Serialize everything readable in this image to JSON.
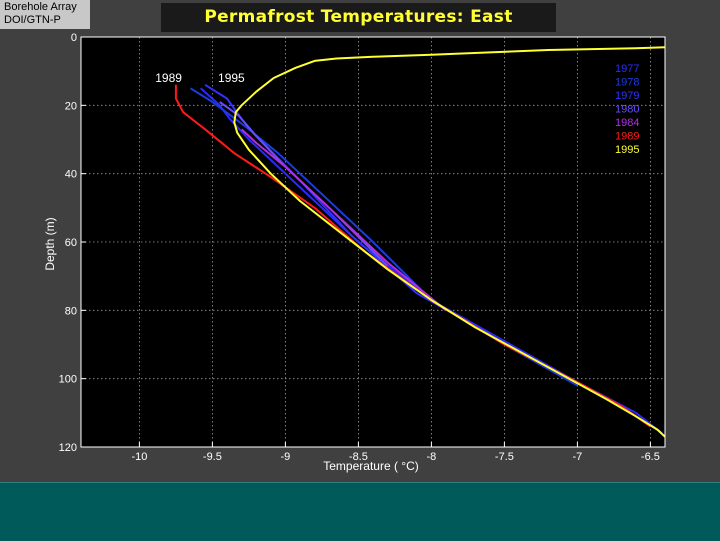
{
  "badge": {
    "line1": "Borehole Array",
    "line2": "DOI/GTN-P"
  },
  "colors": {
    "1977": "#2a2aff",
    "1978": "#1c3ce0",
    "1979": "#3030ff",
    "1980": "#6a4cff",
    "1984": "#b030e0",
    "1989": "#ff1a1a",
    "1995": "#ffff33"
  },
  "chart_data": {
    "type": "line",
    "title": "Permafrost Temperatures:  East Teshekpuk",
    "xlabel": "Temperature ( °C)",
    "ylabel": "Depth (m)",
    "xlim": [
      -10.4,
      -6.4
    ],
    "ylim": [
      0,
      120
    ],
    "y_inverted": true,
    "grid": true,
    "legend_position": "top-right",
    "xticks": [
      -10,
      -9.5,
      -9,
      -8.5,
      -8,
      -7.5,
      -7,
      -6.5
    ],
    "yticks": [
      0,
      20,
      40,
      60,
      80,
      100,
      120
    ],
    "annotations": [
      {
        "text": "1989",
        "x": -9.8,
        "y": 12
      },
      {
        "text": "1995",
        "x": -9.37,
        "y": 12
      }
    ],
    "series": [
      {
        "name": "1977",
        "x": [
          -9.58,
          -9.45,
          -9.38,
          -9.25,
          -8.95,
          -8.5,
          -8.0,
          -7.5,
          -7.0,
          -6.6,
          -6.42
        ],
        "y": [
          15,
          20,
          24,
          30,
          42,
          60,
          77,
          89,
          101,
          110,
          116
        ]
      },
      {
        "name": "1978",
        "x": [
          -9.65,
          -9.5,
          -9.28,
          -9.05,
          -8.8,
          -8.4,
          -8.0,
          -7.5,
          -7.0
        ],
        "y": [
          15,
          19,
          26,
          34,
          44,
          60,
          77,
          90,
          102
        ]
      },
      {
        "name": "1979",
        "x": [
          -9.55,
          -9.4,
          -9.3,
          -9.2,
          -8.9,
          -8.55,
          -8.1,
          -7.6
        ],
        "y": [
          14,
          18,
          24,
          29,
          42,
          58,
          75,
          87
        ]
      },
      {
        "name": "1980",
        "x": [
          -9.45,
          -9.32,
          -9.2,
          -9.0,
          -8.7,
          -8.3
        ],
        "y": [
          19,
          23,
          29,
          38,
          50,
          67
        ]
      },
      {
        "name": "1984",
        "x": [
          -9.3,
          -9.2,
          -9.0,
          -8.7,
          -8.3,
          -7.9
        ],
        "y": [
          27,
          31,
          38,
          50,
          66,
          80
        ]
      },
      {
        "name": "1989",
        "x": [
          -9.75,
          -9.75,
          -9.7,
          -9.55,
          -9.35,
          -9.1,
          -8.8,
          -8.45,
          -8.0,
          -7.5,
          -7.0,
          -6.7,
          -6.5
        ],
        "y": [
          14,
          18,
          22,
          27,
          34,
          41,
          50,
          63,
          77,
          90,
          101,
          108,
          114
        ]
      },
      {
        "name": "1995",
        "x": [
          -6.4,
          -6.6,
          -7.2,
          -7.6,
          -8.0,
          -8.4,
          -8.65,
          -8.8,
          -8.93,
          -9.08,
          -9.2,
          -9.3,
          -9.34,
          -9.35,
          -9.33,
          -9.25,
          -9.1,
          -8.9,
          -8.6,
          -8.3,
          -8.0,
          -7.7,
          -7.4,
          -7.1,
          -6.8,
          -6.6,
          -6.45,
          -6.4
        ],
        "y": [
          3,
          3.3,
          3.8,
          4.5,
          5.2,
          5.8,
          6.3,
          7,
          9,
          12,
          16,
          20,
          22,
          25,
          28,
          33,
          40,
          48,
          58,
          68,
          77,
          85,
          92,
          99,
          106,
          111,
          115,
          117
        ]
      }
    ]
  }
}
